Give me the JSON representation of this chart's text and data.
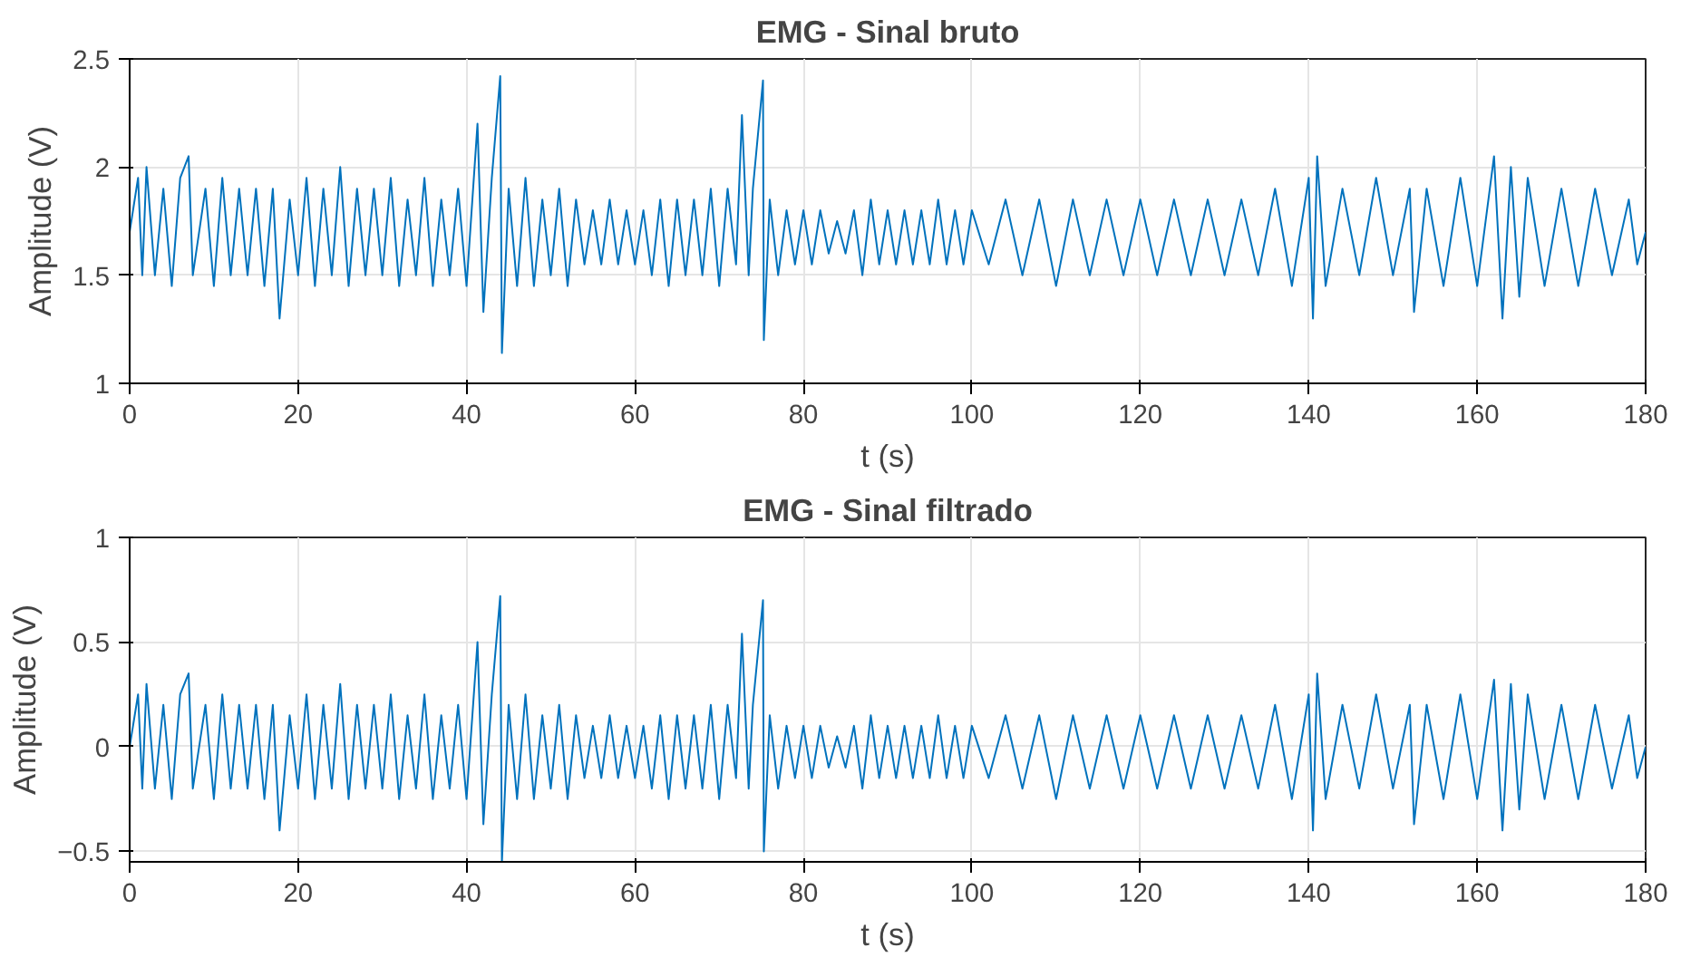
{
  "chart_data": [
    {
      "type": "line",
      "title": "EMG - Sinal bruto",
      "xlabel": "t (s)",
      "ylabel": "Amplitude (V)",
      "xlim": [
        0,
        180
      ],
      "ylim": [
        1,
        2.5
      ],
      "xticks": [
        0,
        20,
        40,
        60,
        80,
        100,
        120,
        140,
        160,
        180
      ],
      "yticks": [
        1,
        1.5,
        2,
        2.5
      ],
      "grid": true,
      "line_style": "solid",
      "marker": "none",
      "series": [
        {
          "color": "#0072bd",
          "x": [
            0,
            1,
            1.5,
            2,
            3,
            4,
            5,
            6,
            7,
            7.5,
            9,
            10,
            11,
            12,
            13,
            14,
            15,
            16,
            17,
            17.8,
            19,
            20,
            21,
            22,
            23,
            24,
            25,
            26,
            27,
            28,
            29,
            30,
            31,
            32,
            33,
            34,
            35,
            36,
            37,
            38,
            39,
            40,
            41.3,
            42,
            43,
            44,
            44.2,
            45,
            46,
            47,
            48,
            49,
            50,
            51,
            52,
            53,
            54,
            55,
            56,
            57,
            58,
            59,
            60,
            61,
            62,
            63,
            64,
            65,
            66,
            67,
            68,
            69,
            70,
            71,
            72,
            72.7,
            73.5,
            74,
            75.2,
            75.3,
            76,
            77,
            78,
            79,
            80,
            81,
            82,
            83,
            84,
            85,
            86,
            87,
            88,
            89,
            90,
            91,
            92,
            93,
            94,
            95,
            96,
            97,
            98,
            99,
            100,
            102,
            104,
            106,
            108,
            110,
            112,
            114,
            116,
            118,
            120,
            122,
            124,
            126,
            128,
            130,
            132,
            134,
            136,
            138,
            140,
            140.5,
            141,
            142,
            144,
            146,
            148,
            150,
            152,
            152.5,
            154,
            156,
            158,
            160,
            162,
            163,
            164,
            165,
            166,
            168,
            170,
            172,
            174,
            176,
            178,
            179,
            180
          ],
          "values": [
            1.7,
            1.95,
            1.5,
            2.0,
            1.5,
            1.9,
            1.45,
            1.95,
            2.05,
            1.5,
            1.9,
            1.45,
            1.95,
            1.5,
            1.9,
            1.5,
            1.9,
            1.45,
            1.9,
            1.3,
            1.85,
            1.5,
            1.95,
            1.45,
            1.9,
            1.5,
            2.0,
            1.45,
            1.9,
            1.5,
            1.9,
            1.5,
            1.95,
            1.45,
            1.85,
            1.5,
            1.95,
            1.45,
            1.85,
            1.5,
            1.9,
            1.45,
            2.2,
            1.33,
            1.95,
            2.42,
            1.14,
            1.9,
            1.45,
            1.95,
            1.45,
            1.85,
            1.5,
            1.9,
            1.45,
            1.85,
            1.55,
            1.8,
            1.55,
            1.85,
            1.55,
            1.8,
            1.55,
            1.8,
            1.5,
            1.85,
            1.45,
            1.85,
            1.5,
            1.85,
            1.5,
            1.9,
            1.45,
            1.9,
            1.55,
            2.24,
            1.5,
            1.9,
            2.4,
            1.2,
            1.85,
            1.5,
            1.8,
            1.55,
            1.8,
            1.55,
            1.8,
            1.6,
            1.75,
            1.6,
            1.8,
            1.5,
            1.85,
            1.55,
            1.8,
            1.55,
            1.8,
            1.55,
            1.8,
            1.55,
            1.85,
            1.55,
            1.8,
            1.55,
            1.8,
            1.55,
            1.85,
            1.5,
            1.85,
            1.45,
            1.85,
            1.5,
            1.85,
            1.5,
            1.85,
            1.5,
            1.85,
            1.5,
            1.85,
            1.5,
            1.85,
            1.5,
            1.9,
            1.45,
            1.95,
            1.3,
            2.05,
            1.45,
            1.9,
            1.5,
            1.95,
            1.5,
            1.9,
            1.33,
            1.9,
            1.45,
            1.95,
            1.45,
            2.05,
            1.3,
            2.0,
            1.4,
            1.95,
            1.45,
            1.9,
            1.45,
            1.9,
            1.5,
            1.85,
            1.55,
            1.7
          ]
        }
      ]
    },
    {
      "type": "line",
      "title": "EMG - Sinal filtrado",
      "xlabel": "t (s)",
      "ylabel": "Amplitude (V)",
      "xlim": [
        0,
        180
      ],
      "ylim": [
        -0.55,
        1
      ],
      "xticks": [
        0,
        20,
        40,
        60,
        80,
        100,
        120,
        140,
        160,
        180
      ],
      "yticks": [
        -0.5,
        0,
        0.5,
        1
      ],
      "grid": true,
      "line_style": "solid",
      "marker": "none",
      "series": [
        {
          "color": "#0072bd",
          "x": [
            0,
            1,
            1.5,
            2,
            3,
            4,
            5,
            6,
            7,
            7.5,
            9,
            10,
            11,
            12,
            13,
            14,
            15,
            16,
            17,
            17.8,
            19,
            20,
            21,
            22,
            23,
            24,
            25,
            26,
            27,
            28,
            29,
            30,
            31,
            32,
            33,
            34,
            35,
            36,
            37,
            38,
            39,
            40,
            41.3,
            42,
            43,
            44,
            44.2,
            45,
            46,
            47,
            48,
            49,
            50,
            51,
            52,
            53,
            54,
            55,
            56,
            57,
            58,
            59,
            60,
            61,
            62,
            63,
            64,
            65,
            66,
            67,
            68,
            69,
            70,
            71,
            72,
            72.7,
            73.5,
            74,
            75.2,
            75.3,
            76,
            77,
            78,
            79,
            80,
            81,
            82,
            83,
            84,
            85,
            86,
            87,
            88,
            89,
            90,
            91,
            92,
            93,
            94,
            95,
            96,
            97,
            98,
            99,
            100,
            102,
            104,
            106,
            108,
            110,
            112,
            114,
            116,
            118,
            120,
            122,
            124,
            126,
            128,
            130,
            132,
            134,
            136,
            138,
            140,
            140.5,
            141,
            142,
            144,
            146,
            148,
            150,
            152,
            152.5,
            154,
            156,
            158,
            160,
            162,
            163,
            164,
            165,
            166,
            168,
            170,
            172,
            174,
            176,
            178,
            179,
            180
          ],
          "values": [
            0,
            0.25,
            -0.2,
            0.3,
            -0.2,
            0.2,
            -0.25,
            0.25,
            0.35,
            -0.2,
            0.2,
            -0.25,
            0.25,
            -0.2,
            0.2,
            -0.2,
            0.2,
            -0.25,
            0.2,
            -0.4,
            0.15,
            -0.2,
            0.25,
            -0.25,
            0.2,
            -0.2,
            0.3,
            -0.25,
            0.2,
            -0.2,
            0.2,
            -0.2,
            0.25,
            -0.25,
            0.15,
            -0.2,
            0.25,
            -0.25,
            0.15,
            -0.2,
            0.2,
            -0.25,
            0.5,
            -0.37,
            0.25,
            0.72,
            -0.55,
            0.2,
            -0.25,
            0.25,
            -0.25,
            0.15,
            -0.2,
            0.2,
            -0.25,
            0.15,
            -0.15,
            0.1,
            -0.15,
            0.15,
            -0.15,
            0.1,
            -0.15,
            0.1,
            -0.2,
            0.15,
            -0.25,
            0.15,
            -0.2,
            0.15,
            -0.2,
            0.2,
            -0.25,
            0.2,
            -0.15,
            0.54,
            -0.2,
            0.2,
            0.7,
            -0.5,
            0.15,
            -0.2,
            0.1,
            -0.15,
            0.1,
            -0.15,
            0.1,
            -0.1,
            0.05,
            -0.1,
            0.1,
            -0.2,
            0.15,
            -0.15,
            0.1,
            -0.15,
            0.1,
            -0.15,
            0.1,
            -0.15,
            0.15,
            -0.15,
            0.1,
            -0.15,
            0.1,
            -0.15,
            0.15,
            -0.2,
            0.15,
            -0.25,
            0.15,
            -0.2,
            0.15,
            -0.2,
            0.15,
            -0.2,
            0.15,
            -0.2,
            0.15,
            -0.2,
            0.15,
            -0.2,
            0.2,
            -0.25,
            0.25,
            -0.4,
            0.35,
            -0.25,
            0.2,
            -0.2,
            0.25,
            -0.2,
            0.2,
            -0.37,
            0.2,
            -0.25,
            0.25,
            -0.25,
            0.32,
            -0.4,
            0.3,
            -0.3,
            0.25,
            -0.25,
            0.2,
            -0.25,
            0.2,
            -0.2,
            0.15,
            -0.15,
            0
          ]
        }
      ]
    }
  ]
}
